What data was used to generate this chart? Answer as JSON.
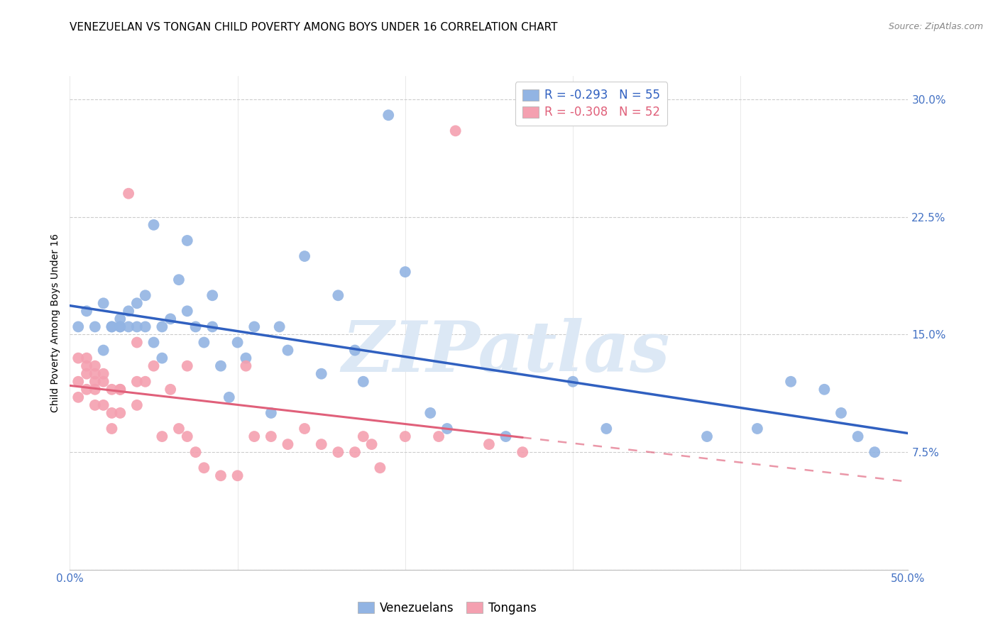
{
  "title": "VENEZUELAN VS TONGAN CHILD POVERTY AMONG BOYS UNDER 16 CORRELATION CHART",
  "source": "Source: ZipAtlas.com",
  "ylabel": "Child Poverty Among Boys Under 16",
  "ytick_vals": [
    0.0,
    0.075,
    0.15,
    0.225,
    0.3
  ],
  "ytick_labels": [
    "",
    "7.5%",
    "15.0%",
    "22.5%",
    "30.0%"
  ],
  "xtick_vals": [
    0.0,
    0.1,
    0.2,
    0.3,
    0.4,
    0.5
  ],
  "xtick_labels": [
    "0.0%",
    "",
    "",
    "",
    "",
    "50.0%"
  ],
  "xlim": [
    0.0,
    0.5
  ],
  "ylim": [
    0.0,
    0.315
  ],
  "venezuelan_color": "#92b4e3",
  "tongan_color": "#f4a0b0",
  "regression_color_ven": "#3060c0",
  "regression_color_ton": "#e0607a",
  "watermark_text": "ZIPatlas",
  "watermark_color": "#dce8f5",
  "legend_ven_label": "R = -0.293   N = 55",
  "legend_ton_label": "R = -0.308   N = 52",
  "legend_ven_text_color": "#3060c0",
  "legend_ton_text_color": "#e0607a",
  "background_color": "#ffffff",
  "grid_color": "#cccccc",
  "tick_color": "#4472c4",
  "title_fontsize": 11,
  "source_fontsize": 9,
  "axis_label_fontsize": 10,
  "tick_fontsize": 11,
  "watermark_fontsize": 72,
  "venezuelan_x": [
    0.005,
    0.01,
    0.015,
    0.02,
    0.02,
    0.025,
    0.025,
    0.03,
    0.03,
    0.03,
    0.035,
    0.035,
    0.04,
    0.04,
    0.045,
    0.045,
    0.05,
    0.05,
    0.055,
    0.055,
    0.06,
    0.065,
    0.07,
    0.07,
    0.075,
    0.08,
    0.085,
    0.085,
    0.09,
    0.095,
    0.1,
    0.105,
    0.11,
    0.12,
    0.125,
    0.13,
    0.14,
    0.15,
    0.16,
    0.17,
    0.175,
    0.19,
    0.2,
    0.215,
    0.225,
    0.26,
    0.3,
    0.32,
    0.38,
    0.41,
    0.43,
    0.45,
    0.46,
    0.47,
    0.48
  ],
  "venezuelan_y": [
    0.155,
    0.165,
    0.155,
    0.17,
    0.14,
    0.155,
    0.155,
    0.155,
    0.155,
    0.16,
    0.155,
    0.165,
    0.17,
    0.155,
    0.155,
    0.175,
    0.22,
    0.145,
    0.135,
    0.155,
    0.16,
    0.185,
    0.21,
    0.165,
    0.155,
    0.145,
    0.155,
    0.175,
    0.13,
    0.11,
    0.145,
    0.135,
    0.155,
    0.1,
    0.155,
    0.14,
    0.2,
    0.125,
    0.175,
    0.14,
    0.12,
    0.29,
    0.19,
    0.1,
    0.09,
    0.085,
    0.12,
    0.09,
    0.085,
    0.09,
    0.12,
    0.115,
    0.1,
    0.085,
    0.075
  ],
  "tongan_x": [
    0.005,
    0.005,
    0.005,
    0.01,
    0.01,
    0.01,
    0.01,
    0.015,
    0.015,
    0.015,
    0.015,
    0.015,
    0.02,
    0.02,
    0.02,
    0.025,
    0.025,
    0.025,
    0.03,
    0.03,
    0.03,
    0.035,
    0.04,
    0.04,
    0.04,
    0.045,
    0.05,
    0.055,
    0.06,
    0.065,
    0.07,
    0.07,
    0.075,
    0.08,
    0.09,
    0.1,
    0.105,
    0.11,
    0.12,
    0.13,
    0.14,
    0.15,
    0.16,
    0.17,
    0.175,
    0.18,
    0.185,
    0.2,
    0.22,
    0.23,
    0.25,
    0.27
  ],
  "tongan_y": [
    0.135,
    0.12,
    0.11,
    0.135,
    0.13,
    0.125,
    0.115,
    0.125,
    0.13,
    0.12,
    0.115,
    0.105,
    0.125,
    0.12,
    0.105,
    0.115,
    0.1,
    0.09,
    0.115,
    0.115,
    0.1,
    0.24,
    0.145,
    0.12,
    0.105,
    0.12,
    0.13,
    0.085,
    0.115,
    0.09,
    0.13,
    0.085,
    0.075,
    0.065,
    0.06,
    0.06,
    0.13,
    0.085,
    0.085,
    0.08,
    0.09,
    0.08,
    0.075,
    0.075,
    0.085,
    0.08,
    0.065,
    0.085,
    0.085,
    0.28,
    0.08,
    0.075
  ]
}
